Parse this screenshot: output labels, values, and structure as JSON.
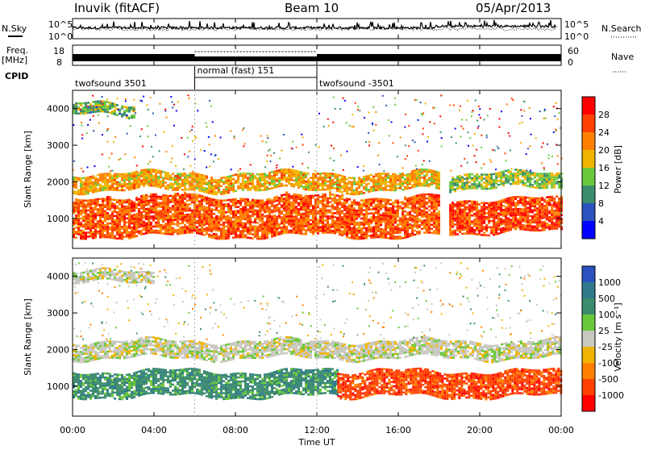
{
  "header": {
    "station": "Inuvik (fitACF)",
    "beam": "Beam 10",
    "date": "05/Apr/2013"
  },
  "left_labels": {
    "nsky": "N.Sky",
    "freq": "Freq.",
    "freq_unit": "[MHz]",
    "cpid": "CPID"
  },
  "right_labels": {
    "nsearch": "N.Search",
    "nave": "Nave"
  },
  "noise_axis": {
    "top": "10^5",
    "bottom": "10^0"
  },
  "freq_axis": {
    "top": "18",
    "bottom": "8"
  },
  "nave_axis": {
    "top": "60",
    "bottom": "0"
  },
  "cpid_segments": [
    {
      "label": "twofsound 3501",
      "start_hour": 0,
      "end_hour": 6
    },
    {
      "label": "normal (fast) 151",
      "start_hour": 6,
      "end_hour": 12
    },
    {
      "label": "twofsound -3501",
      "start_hour": 12,
      "end_hour": 24
    }
  ],
  "power_panel": {
    "ylabel": "Slant Range [km]",
    "cbar_label": "Power [dB]"
  },
  "velocity_panel": {
    "ylabel": "Slant Range [km]",
    "cbar_label": "Velocity [m s⁻¹]"
  },
  "xaxis": {
    "label": "Time UT",
    "ticks": [
      "00:00",
      "04:00",
      "08:00",
      "12:00",
      "16:00",
      "20:00",
      "00:00"
    ]
  },
  "chart_data": [
    {
      "type": "heatmap",
      "title": "Power",
      "x": "hours UT",
      "xlim": [
        0,
        24
      ],
      "ylim": [
        180,
        4500
      ],
      "yticks": [
        1000,
        2000,
        3000,
        4000
      ],
      "colorbar": {
        "label": "Power [dB]",
        "ticks": [
          4,
          8,
          12,
          16,
          20,
          24,
          28
        ],
        "range": [
          0,
          32
        ],
        "colors": [
          "#0000ff",
          "#2a52be",
          "#3c8c6e",
          "#6ac83c",
          "#f0b400",
          "#ff8000",
          "#ff4000",
          "#ff0000"
        ]
      },
      "scatter_bands": [
        {
          "t_start": 0,
          "t_end": 18,
          "range_start": 500,
          "range_end": 1600,
          "value": 26
        },
        {
          "t_start": 0,
          "t_end": 18,
          "range_start": 1750,
          "range_end": 2200,
          "value": 20
        },
        {
          "t_start": 18.5,
          "t_end": 24,
          "range_start": 600,
          "range_end": 1500,
          "value": 28
        },
        {
          "t_start": 18.5,
          "t_end": 24,
          "range_start": 1800,
          "range_end": 2200,
          "value": 14
        },
        {
          "t_start": 0,
          "t_end": 3,
          "range_start": 3800,
          "range_end": 4100,
          "value": 12
        }
      ]
    },
    {
      "type": "heatmap",
      "title": "Velocity",
      "x": "hours UT",
      "xlim": [
        0,
        24
      ],
      "ylim": [
        180,
        4500
      ],
      "yticks": [
        1000,
        2000,
        3000,
        4000
      ],
      "colorbar": {
        "label": "Velocity [m s⁻¹]",
        "ticks": [
          1000,
          500,
          100,
          25,
          -25,
          -100,
          -500,
          -1000
        ],
        "colors": [
          "#2a52be",
          "#2f7a8c",
          "#3c8c6e",
          "#6ac83c",
          "#c8c8c0",
          "#f0b400",
          "#ff8000",
          "#ff4000",
          "#ff0000"
        ]
      },
      "scatter_bands": [
        {
          "t_start": 0,
          "t_end": 13,
          "range_start": 700,
          "range_end": 1400,
          "value": 100
        },
        {
          "t_start": 0,
          "t_end": 24,
          "range_start": 1750,
          "range_end": 2200,
          "value": 0
        },
        {
          "t_start": 13,
          "t_end": 24,
          "range_start": 700,
          "range_end": 1400,
          "value": -500
        },
        {
          "t_start": 0,
          "t_end": 4,
          "range_start": 3800,
          "range_end": 4100,
          "value": 0
        }
      ]
    }
  ]
}
